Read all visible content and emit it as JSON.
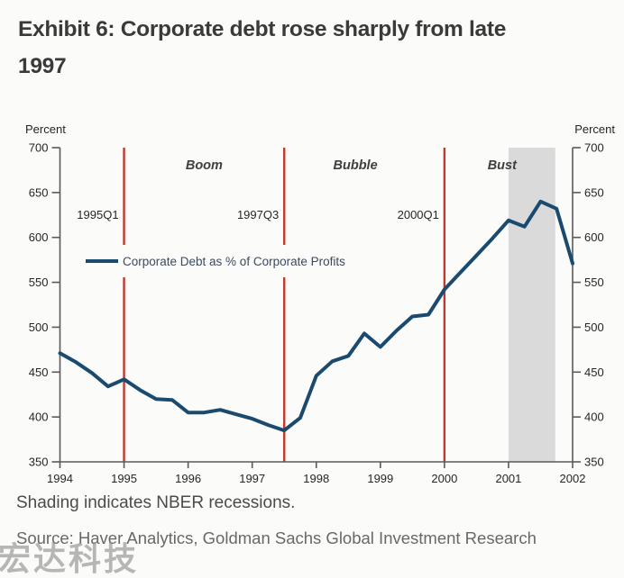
{
  "header": {
    "title_line1": "Exhibit 6: Corporate debt rose sharply from late",
    "title_line2": "1997"
  },
  "footer": {
    "note": "Shading indicates NBER recessions.",
    "source": "Source: Haver Analytics, Goldman Sachs Global Investment Research"
  },
  "watermark": {
    "text": "宏达科技"
  },
  "chart_data": {
    "type": "line",
    "title": "Exhibit 6: Corporate debt rose sharply from late 1997",
    "ylabel_left": "Percent",
    "ylabel_right": "Percent",
    "ylim": [
      350,
      700
    ],
    "ytick_step": 50,
    "yticks": [
      350,
      400,
      450,
      500,
      550,
      600,
      650,
      700
    ],
    "xticks": [
      1994,
      1995,
      1996,
      1997,
      1998,
      1999,
      2000,
      2001,
      2002
    ],
    "xlim": [
      1994,
      2002
    ],
    "grid": false,
    "legend_position": "upper-left-inside",
    "legend": {
      "label": "Corporate Debt as % of Corporate Profits"
    },
    "vlines": [
      {
        "x": 1995.0,
        "label": "1995Q1"
      },
      {
        "x": 1997.5,
        "label": "1997Q3"
      },
      {
        "x": 2000.0,
        "label": "2000Q1"
      }
    ],
    "era_labels": [
      {
        "text": "Boom",
        "x": 1996.25
      },
      {
        "text": "Bubble",
        "x": 1998.61
      },
      {
        "text": "Bust",
        "x": 2000.9
      }
    ],
    "recession_shading": {
      "start": 2001.0,
      "end": 2001.73
    },
    "series": [
      {
        "name": "Corporate Debt as % of Corporate Profits",
        "x_start": 1994.0,
        "x_step": 0.25,
        "values": [
          471,
          461,
          449,
          434,
          442,
          430,
          420,
          419,
          405,
          405,
          408,
          403,
          398,
          391,
          385,
          399,
          446,
          462,
          468,
          493,
          478,
          496,
          512,
          514,
          542,
          561,
          580,
          599,
          619,
          612,
          640,
          632,
          571
        ]
      }
    ],
    "colors": {
      "line": "#1a4a6e",
      "vline": "#c0392f",
      "shading": "#dadada",
      "axis": "#5a5a5a",
      "tick_label": "#262626",
      "era_label": "#3f3f3f",
      "legend_text": "#3e4a5e",
      "background": "#fbfbfa"
    }
  }
}
